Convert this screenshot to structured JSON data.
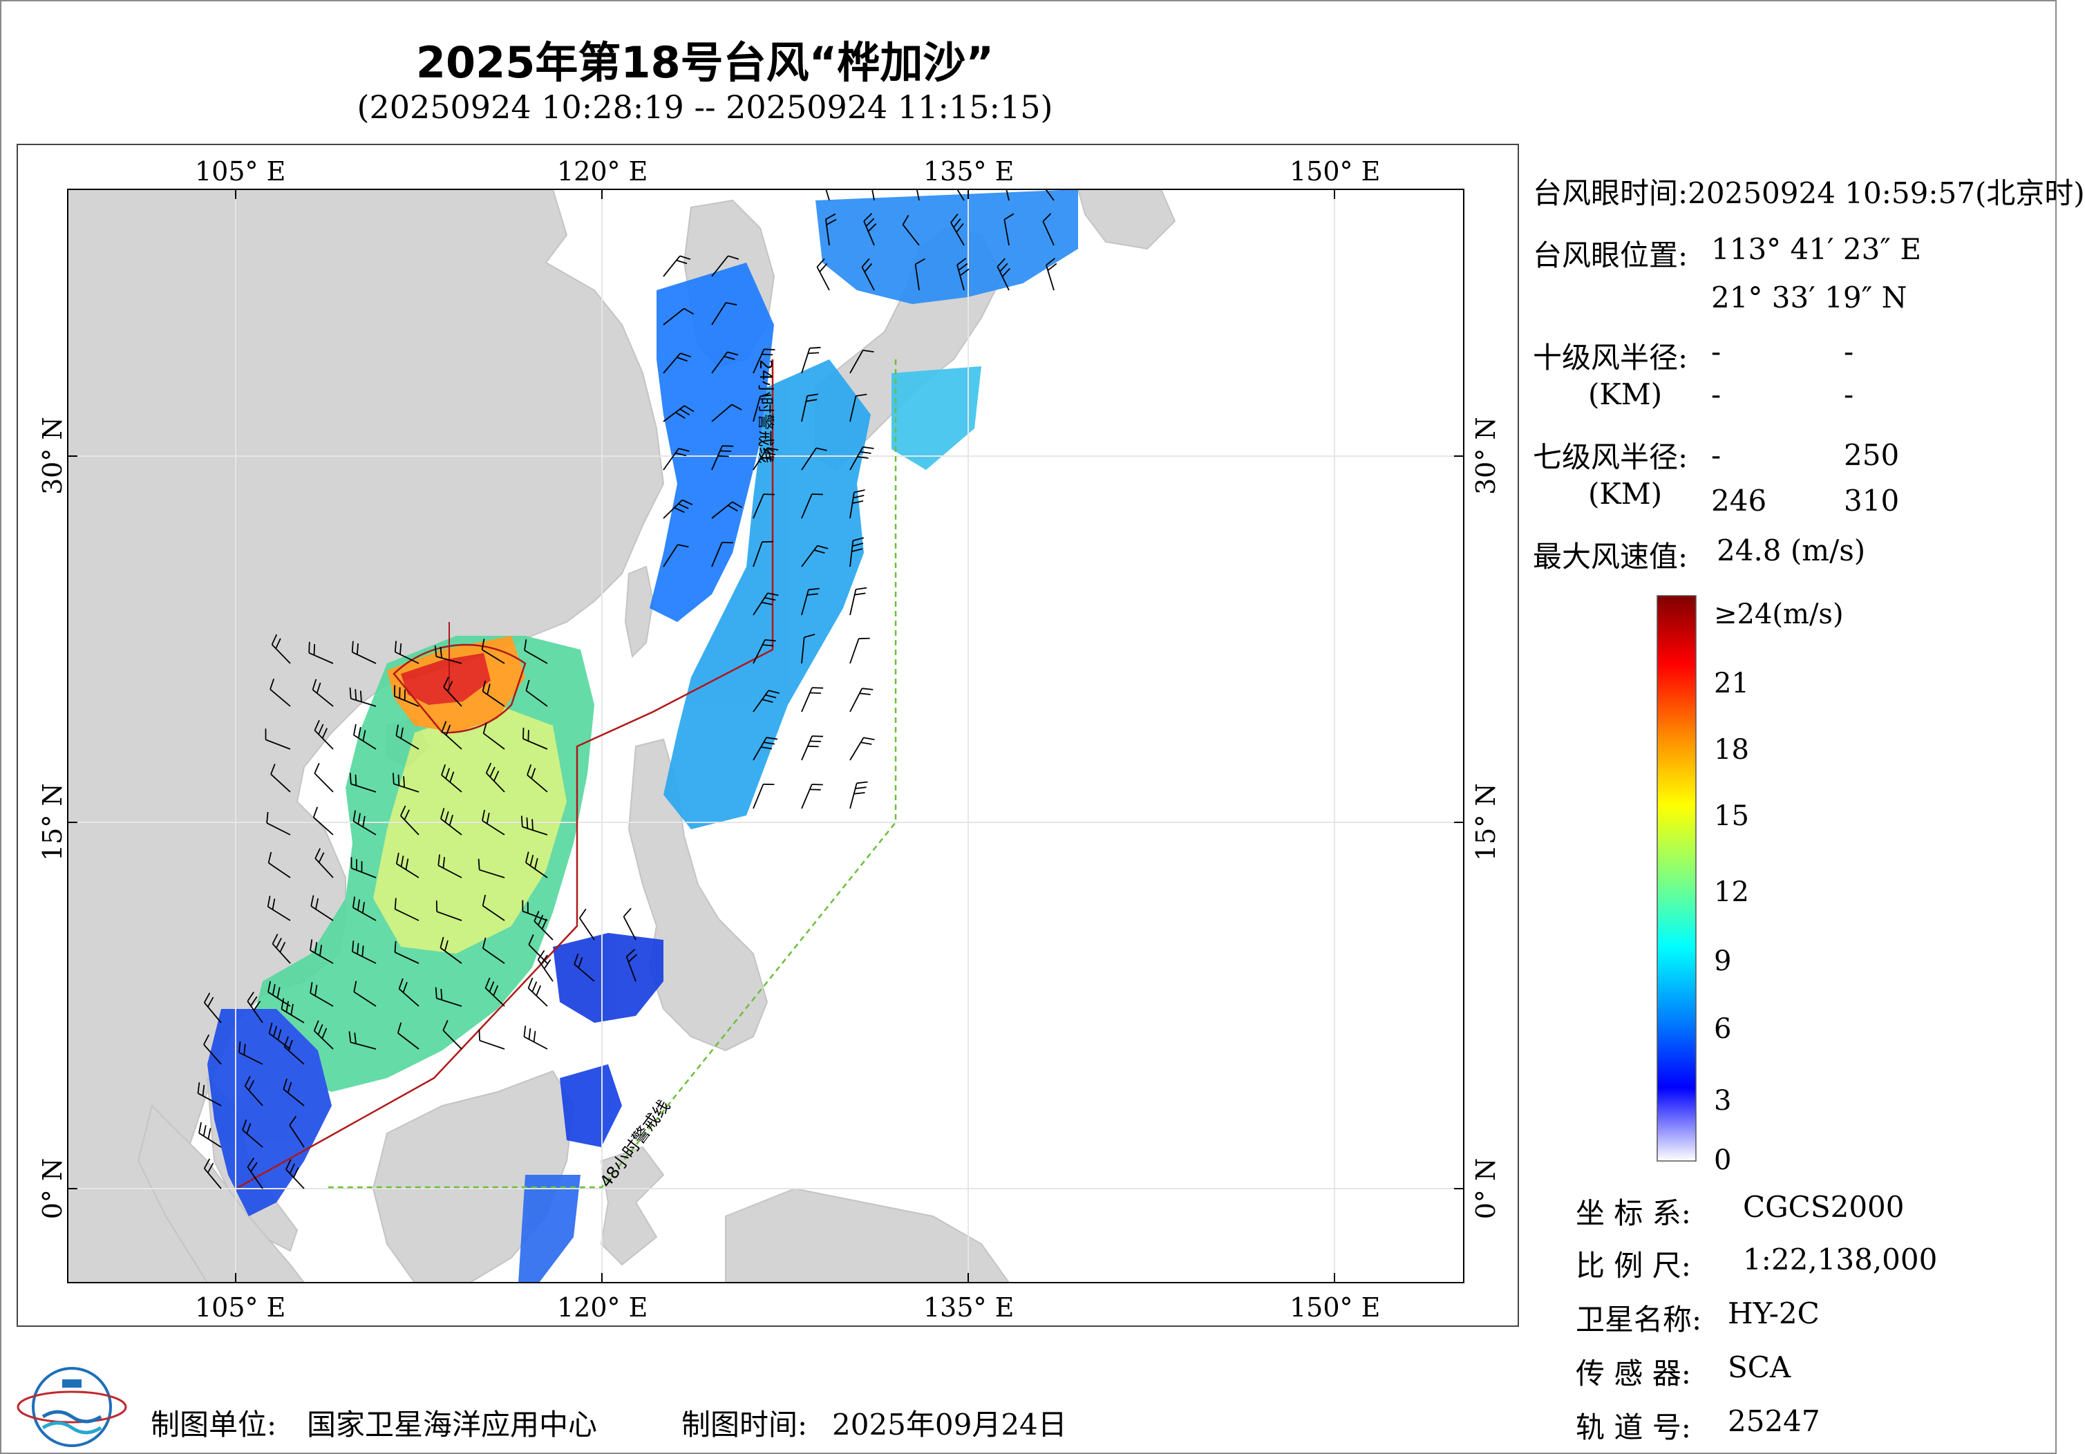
{
  "title": "2025年第18号台风“桦加沙”",
  "subtitle": "(20250924 10:28:19 -- 20250924 11:15:15)",
  "map": {
    "lon_ticks_top": [
      "105° E",
      "120° E",
      "135° E",
      "150° E"
    ],
    "lon_ticks_bottom": [
      "105° E",
      "120° E",
      "135° E",
      "150° E"
    ],
    "lat_ticks_left": [
      "30° N",
      "15° N",
      "0° N"
    ],
    "lat_ticks_right": [
      "30° N",
      "15° N",
      "0° N"
    ],
    "lon_range": [
      98,
      155
    ],
    "lat_range": [
      -4,
      41
    ],
    "warning_line_24h_label": "24小时警戒线",
    "warning_line_48h_label": "48小时警戒线",
    "colors": {
      "land": "#d4d4d4",
      "ocean": "#ffffff",
      "line_24h": "#b01818",
      "line_48h": "#6cbf3c"
    }
  },
  "info": {
    "eye_time_label": "台风眼时间:",
    "eye_time_value": "20250924 10:59:57(北京时)",
    "eye_pos_label": "台风眼位置:",
    "eye_lon": "113° 41′ 23″ E",
    "eye_lat": "21° 33′ 19″ N",
    "r10_label": "十级风半径:",
    "r10_unit": "(KM)",
    "r10_values": [
      "-",
      "-",
      "-",
      "-"
    ],
    "r7_label": "七级风半径:",
    "r7_unit": "(KM)",
    "r7_values": [
      "-",
      "250",
      "246",
      "310"
    ],
    "max_wind_label": "最大风速值:",
    "max_wind_value": "24.8  (m/s)"
  },
  "colorbar": {
    "labels": [
      "≥24(m/s)",
      "21",
      "18",
      "15",
      "12",
      "9",
      "6",
      "3",
      "0"
    ],
    "colors": [
      "#800000",
      "#ff0000",
      "#ff8c00",
      "#ffff00",
      "#7fff7f",
      "#00ffff",
      "#0080ff",
      "#0000ff",
      "#ffffff"
    ]
  },
  "meta": {
    "crs_label": "坐 标 系:",
    "crs_value": "CGCS2000",
    "scale_label": "比 例 尺:",
    "scale_value": "1:22,138,000",
    "satellite_label": "卫星名称:",
    "satellite_value": "HY-2C",
    "sensor_label": "传 感 器:",
    "sensor_value": "SCA",
    "orbit_label": "轨 道 号:",
    "orbit_value": "25247"
  },
  "footer": {
    "org_label": "制图单位:",
    "org_value": "国家卫星海洋应用中心",
    "date_label": "制图时间:",
    "date_value": "2025年09月24日"
  },
  "logo_icon": "nsoas-globe-logo-icon"
}
